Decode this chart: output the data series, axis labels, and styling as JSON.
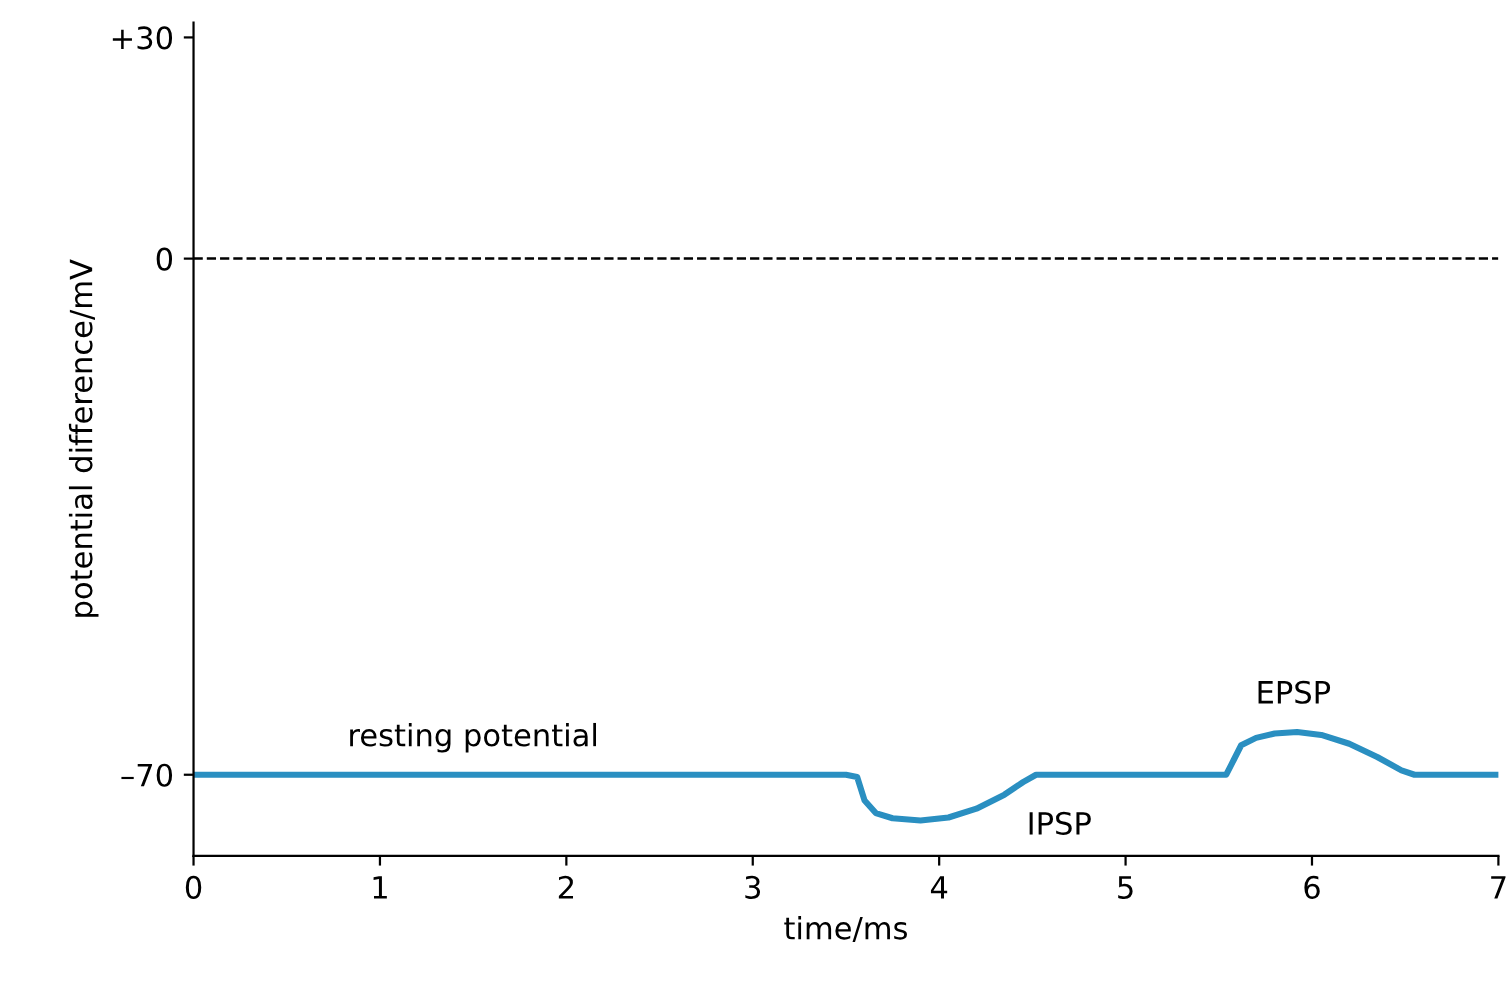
{
  "chart_data": {
    "type": "line",
    "xlabel": "time/ms",
    "ylabel": "potential difference/mV",
    "x": [
      0,
      3.5,
      3.56,
      3.6,
      3.66,
      3.75,
      3.9,
      4.05,
      4.2,
      4.35,
      4.45,
      4.52,
      5.0,
      5.54,
      5.58,
      5.62,
      5.7,
      5.8,
      5.92,
      6.05,
      6.2,
      6.35,
      6.48,
      6.55,
      7
    ],
    "series": [
      {
        "color": "#2a8fc1",
        "values": [
          -70,
          -70,
          -70.3,
          -73.5,
          -75.2,
          -75.9,
          -76.2,
          -75.8,
          -74.6,
          -72.7,
          -71,
          -70,
          -70,
          -70,
          -68,
          -66,
          -65,
          -64.4,
          -64.2,
          -64.6,
          -65.8,
          -67.6,
          -69.4,
          -70,
          -70
        ]
      }
    ],
    "xlim": [
      0,
      7
    ],
    "ylim": [
      -81,
      32
    ],
    "xticks": [
      0,
      1,
      2,
      3,
      4,
      5,
      6,
      7
    ],
    "yticks": [
      {
        "value": 30,
        "label": "+30"
      },
      0,
      {
        "value": -70,
        "label": "–70"
      }
    ],
    "ref_lines": [
      {
        "axis": "y",
        "value": 0,
        "line_style": "dashed",
        "color": "#000000"
      }
    ],
    "annotations": [
      {
        "text": "resting potential",
        "x": 1.5,
        "y": -70
      },
      {
        "text": "IPSP",
        "x": 4.35,
        "y": -72.7
      },
      {
        "text": "EPSP",
        "x": 5.9,
        "y": -64.2
      }
    ],
    "grid": false,
    "legend": false,
    "marker": "none",
    "line_style": "solid"
  }
}
